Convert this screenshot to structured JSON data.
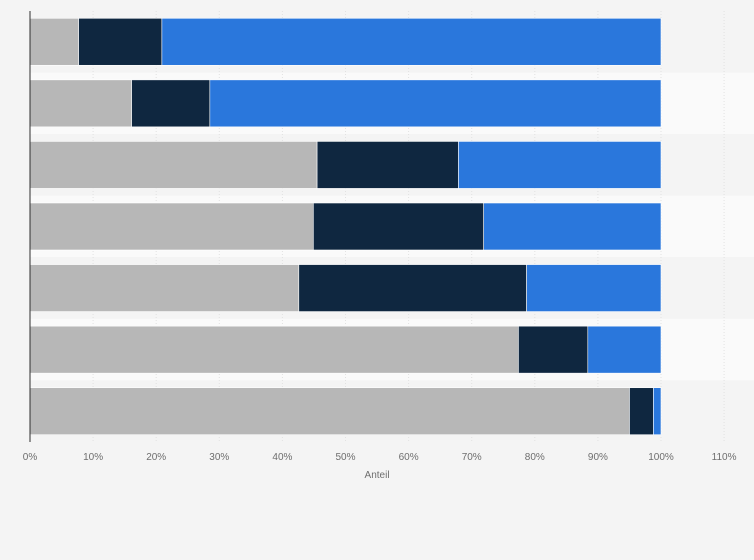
{
  "chart_data": {
    "type": "bar",
    "orientation": "horizontal",
    "stacked": true,
    "title": "",
    "xlabel": "Anteil",
    "ylabel": "",
    "xlim": [
      0,
      110
    ],
    "x_ticks": [
      "0%",
      "10%",
      "20%",
      "30%",
      "40%",
      "50%",
      "60%",
      "70%",
      "80%",
      "90%",
      "100%",
      "110%"
    ],
    "categories": [
      "",
      "",
      "",
      "",
      "",
      "",
      ""
    ],
    "series": [
      {
        "color": "#b7b7b7",
        "values": [
          7.7,
          16.1,
          45.5,
          44.9,
          42.6,
          77.4,
          95.0
        ]
      },
      {
        "color": "#0f2740",
        "values": [
          13.2,
          12.4,
          22.4,
          27.0,
          36.1,
          11.0,
          3.8
        ]
      },
      {
        "color": "#2a77dc",
        "values": [
          79.1,
          71.5,
          32.1,
          28.1,
          21.3,
          11.6,
          1.2
        ]
      }
    ],
    "grid": true,
    "legend": "none"
  }
}
